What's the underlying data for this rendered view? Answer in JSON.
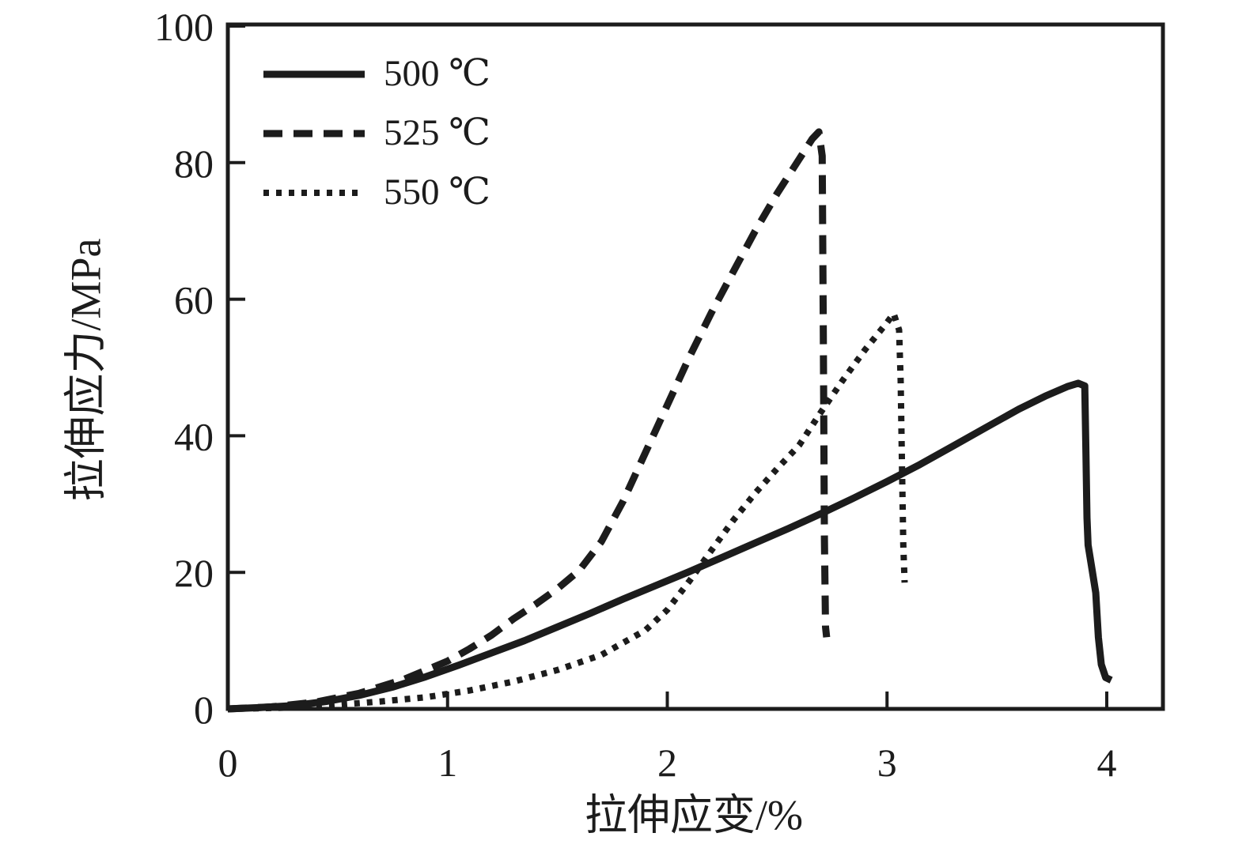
{
  "figure": {
    "background_color": "#ffffff",
    "ink_color": "#1c1c1c"
  },
  "chart_data": {
    "type": "line",
    "title": "",
    "xlabel": "拉伸应变/%",
    "ylabel": "拉伸应力/MPa",
    "xlim": [
      0,
      4.25
    ],
    "ylim": [
      0,
      100
    ],
    "xticks": [
      0,
      1,
      2,
      3,
      4
    ],
    "yticks": [
      0,
      20,
      40,
      60,
      80,
      100
    ],
    "grid": false,
    "legend_position": "top-left",
    "series": [
      {
        "name": "500 ℃",
        "style": "solid",
        "points": [
          [
            0,
            0
          ],
          [
            0.15,
            0.2
          ],
          [
            0.3,
            0.5
          ],
          [
            0.45,
            1.1
          ],
          [
            0.6,
            2.0
          ],
          [
            0.75,
            3.2
          ],
          [
            0.9,
            4.7
          ],
          [
            1.05,
            6.4
          ],
          [
            1.2,
            8.2
          ],
          [
            1.35,
            10.0
          ],
          [
            1.5,
            12.0
          ],
          [
            1.65,
            14.0
          ],
          [
            1.8,
            16.1
          ],
          [
            1.95,
            18.1
          ],
          [
            2.1,
            20.1
          ],
          [
            2.25,
            22.2
          ],
          [
            2.4,
            24.3
          ],
          [
            2.55,
            26.4
          ],
          [
            2.7,
            28.6
          ],
          [
            2.85,
            30.9
          ],
          [
            3.0,
            33.3
          ],
          [
            3.15,
            35.8
          ],
          [
            3.3,
            38.5
          ],
          [
            3.45,
            41.2
          ],
          [
            3.6,
            43.9
          ],
          [
            3.72,
            45.8
          ],
          [
            3.82,
            47.2
          ],
          [
            3.87,
            47.7
          ],
          [
            3.9,
            47.3
          ],
          [
            3.905,
            38.0
          ],
          [
            3.91,
            28.0
          ],
          [
            3.915,
            24.0
          ],
          [
            3.93,
            21.0
          ],
          [
            3.95,
            17.0
          ],
          [
            3.962,
            10.5
          ],
          [
            3.975,
            6.5
          ],
          [
            3.995,
            4.6
          ],
          [
            4.02,
            4.2
          ]
        ]
      },
      {
        "name": "525 ℃",
        "style": "dashed",
        "points": [
          [
            0,
            0
          ],
          [
            0.2,
            0.3
          ],
          [
            0.4,
            1.0
          ],
          [
            0.6,
            2.3
          ],
          [
            0.8,
            4.3
          ],
          [
            1.0,
            7.0
          ],
          [
            1.1,
            8.8
          ],
          [
            1.2,
            10.8
          ],
          [
            1.3,
            13.2
          ],
          [
            1.4,
            15.3
          ],
          [
            1.5,
            17.6
          ],
          [
            1.6,
            20.3
          ],
          [
            1.7,
            24.5
          ],
          [
            1.8,
            30.5
          ],
          [
            1.9,
            37.5
          ],
          [
            2.0,
            44.5
          ],
          [
            2.1,
            51.5
          ],
          [
            2.2,
            58.0
          ],
          [
            2.3,
            64.0
          ],
          [
            2.4,
            70.0
          ],
          [
            2.5,
            75.5
          ],
          [
            2.6,
            80.5
          ],
          [
            2.66,
            83.5
          ],
          [
            2.69,
            84.5
          ],
          [
            2.705,
            81.0
          ],
          [
            2.71,
            55.0
          ],
          [
            2.715,
            25.0
          ],
          [
            2.72,
            12.0
          ],
          [
            2.725,
            10.5
          ]
        ]
      },
      {
        "name": "550 ℃",
        "style": "dotted",
        "points": [
          [
            0,
            0
          ],
          [
            0.3,
            0.2
          ],
          [
            0.5,
            0.6
          ],
          [
            0.7,
            1.1
          ],
          [
            0.9,
            1.7
          ],
          [
            1.1,
            2.7
          ],
          [
            1.3,
            4.0
          ],
          [
            1.5,
            5.7
          ],
          [
            1.7,
            7.9
          ],
          [
            1.9,
            11.5
          ],
          [
            2.0,
            14.5
          ],
          [
            2.1,
            18.7
          ],
          [
            2.2,
            23.2
          ],
          [
            2.3,
            27.6
          ],
          [
            2.4,
            31.6
          ],
          [
            2.5,
            35.2
          ],
          [
            2.6,
            38.6
          ],
          [
            2.7,
            43.5
          ],
          [
            2.8,
            48.2
          ],
          [
            2.9,
            52.6
          ],
          [
            3.0,
            56.6
          ],
          [
            3.03,
            57.9
          ],
          [
            3.055,
            55.5
          ],
          [
            3.062,
            48.0
          ],
          [
            3.068,
            36.0
          ],
          [
            3.074,
            24.0
          ],
          [
            3.08,
            18.5
          ]
        ]
      }
    ]
  }
}
